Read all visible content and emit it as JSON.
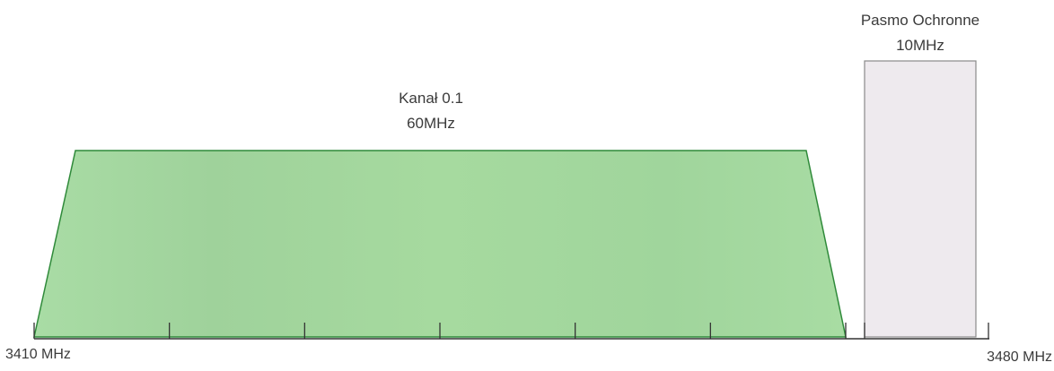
{
  "channel": {
    "name": "Kanał 0.1",
    "bandwidth": "60MHz",
    "start_mhz": 3410,
    "end_mhz": 3470,
    "color": "#a6d9a2",
    "stroke": "#2f8a3a"
  },
  "guard_band": {
    "name": "Pasmo Ochronne",
    "bandwidth": "10MHz",
    "start_mhz": 3470,
    "end_mhz": 3480,
    "color": "#eeeaee",
    "stroke": "#8a8a8a"
  },
  "axis": {
    "start_label": "3410 MHz",
    "end_label": "3480 MHz",
    "start_mhz": 3410,
    "end_mhz": 3480,
    "tick_step_mhz": 10
  }
}
